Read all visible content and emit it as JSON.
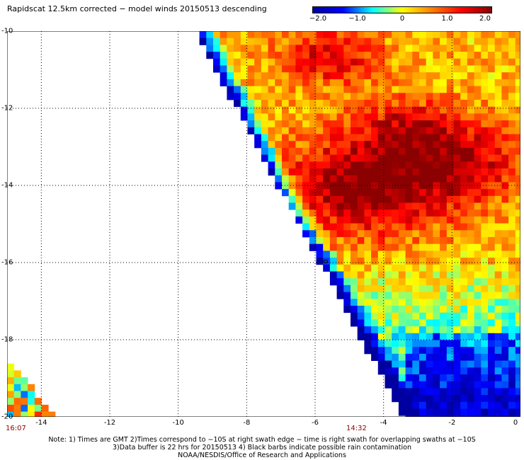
{
  "title": "Rapidscat 12.5km corrected − model winds 20150513 descending",
  "colorbar": {
    "ticks": [
      {
        "value": -2.0,
        "label": "−2.0"
      },
      {
        "value": -1.0,
        "label": "−1.0"
      },
      {
        "value": 0,
        "label": "0"
      },
      {
        "value": 1.0,
        "label": "1.0"
      },
      {
        "value": 2.0,
        "label": "2.0"
      }
    ],
    "range": [
      -2.0,
      2.0
    ],
    "colors": [
      "#0000a0",
      "#0000ff",
      "#00ffff",
      "#ffff00",
      "#ff7f00",
      "#ff0000",
      "#8b0000"
    ]
  },
  "map": {
    "lon_range": [
      -15,
      0
    ],
    "lat_range": [
      -20,
      -10
    ],
    "x_ticks": [
      "-14",
      "-12",
      "-10",
      "-8",
      "-6",
      "-4",
      "-2",
      "0"
    ],
    "y_ticks": [
      "-10",
      "-12",
      "-14",
      "-16",
      "-18",
      "-20"
    ],
    "grid": true,
    "swath_times": [
      {
        "label": "16:07",
        "lon": -15
      },
      {
        "label": "14:32",
        "lon": -4.8
      }
    ]
  },
  "notes": [
    "Note: 1) Times are GMT 2)Times correspond to −10S at right swath edge − time is right swath for overlapping swaths at −10S",
    "3)Data buffer is 22 hrs for 20150513 4) Black barbs indicate possible rain contamination",
    "NOAA/NESDIS/Office of Research and Applications"
  ]
}
